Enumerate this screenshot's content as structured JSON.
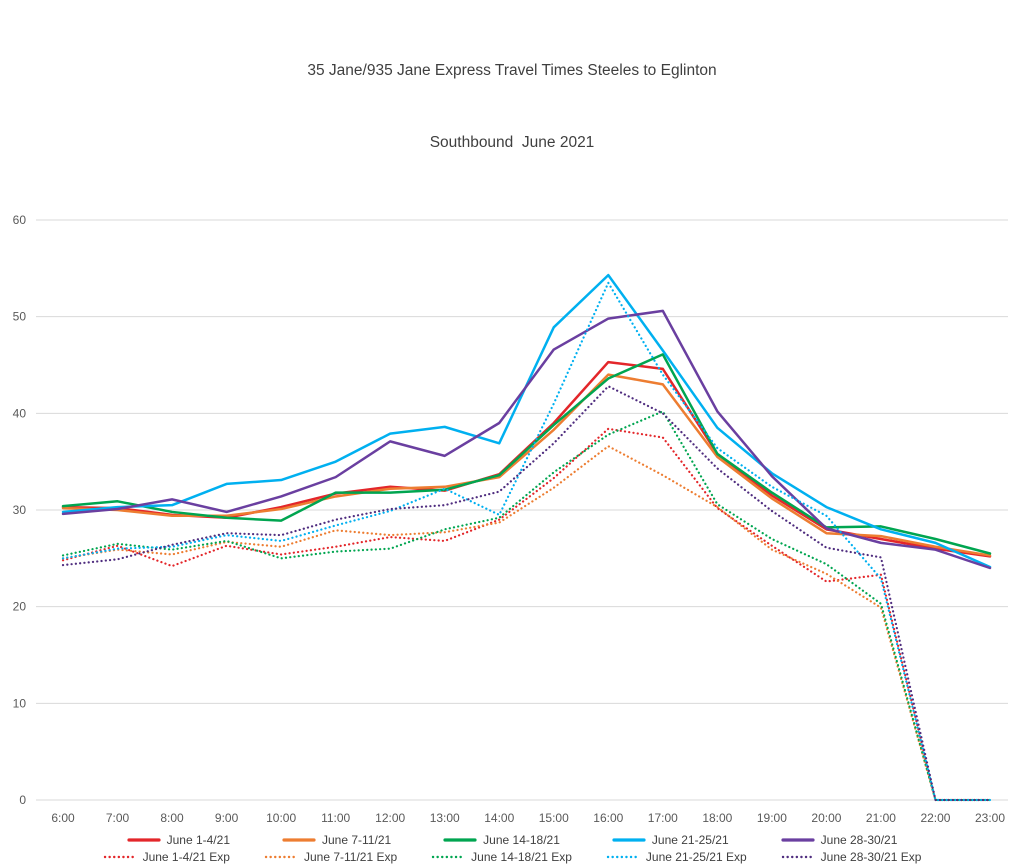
{
  "title": {
    "line1": "35 Jane/935 Jane Express Travel Times Steeles to Eglinton",
    "line2": "Southbound  June 2021"
  },
  "chart_data": {
    "type": "line",
    "title": "35 Jane/935 Jane Express Travel Times Steeles to Eglinton Southbound June 2021",
    "xlabel": "",
    "ylabel": "",
    "x": [
      "6:00",
      "7:00",
      "8:00",
      "9:00",
      "10:00",
      "11:00",
      "12:00",
      "13:00",
      "14:00",
      "15:00",
      "16:00",
      "17:00",
      "18:00",
      "19:00",
      "20:00",
      "21:00",
      "22:00",
      "23:00"
    ],
    "ylim": [
      0,
      60
    ],
    "yticks": [
      0,
      10,
      20,
      30,
      40,
      50,
      60
    ],
    "grid": true,
    "grid_color": "#d9d9d9",
    "axis_text_color": "#595959",
    "legend_position": "bottom",
    "series": [
      {
        "name": "June 1-4/21",
        "color": "#e3262a",
        "style": "solid",
        "values": [
          30.3,
          30.2,
          29.5,
          29.2,
          30.3,
          31.7,
          32.4,
          32.0,
          33.7,
          39.0,
          45.3,
          44.6,
          35.8,
          31.5,
          28.0,
          27.0,
          26.0,
          25.2
        ]
      },
      {
        "name": "June 7-11/21",
        "color": "#ed7d31",
        "style": "solid",
        "values": [
          30.2,
          30.0,
          29.4,
          29.4,
          30.1,
          31.4,
          32.2,
          32.4,
          33.4,
          38.3,
          44.0,
          43.0,
          35.5,
          31.2,
          27.6,
          27.3,
          26.2,
          25.3
        ]
      },
      {
        "name": "June 14-18/21",
        "color": "#00a550",
        "style": "solid",
        "values": [
          30.4,
          30.9,
          29.8,
          29.2,
          28.9,
          31.8,
          31.8,
          32.1,
          33.6,
          38.8,
          43.6,
          46.1,
          35.8,
          31.8,
          28.2,
          28.3,
          27.0,
          25.5
        ]
      },
      {
        "name": "June 21-25/21",
        "color": "#00b0f0",
        "style": "solid",
        "values": [
          29.8,
          30.3,
          30.5,
          32.7,
          33.1,
          35.0,
          37.9,
          38.6,
          36.9,
          48.9,
          54.3,
          46.5,
          38.5,
          33.8,
          30.3,
          28.0,
          26.6,
          24.1
        ]
      },
      {
        "name": "June 28-30/21",
        "color": "#6a3fa0",
        "style": "solid",
        "values": [
          29.6,
          30.1,
          31.1,
          29.8,
          31.4,
          33.4,
          37.1,
          35.6,
          39.0,
          46.6,
          49.8,
          50.6,
          40.2,
          33.5,
          28.1,
          26.6,
          25.9,
          24.0
        ]
      },
      {
        "name": "June 1-4/21 Exp",
        "color": "#e3262a",
        "style": "dotted",
        "values": [
          24.8,
          26.3,
          24.2,
          26.3,
          25.4,
          26.2,
          27.2,
          26.8,
          29.0,
          33.3,
          38.4,
          37.5,
          30.2,
          26.3,
          22.6,
          23.3,
          0,
          0
        ]
      },
      {
        "name": "June 7-11/21 Exp",
        "color": "#ed7d31",
        "style": "dotted",
        "values": [
          25.0,
          25.9,
          25.4,
          26.7,
          26.2,
          27.9,
          27.4,
          27.7,
          28.7,
          32.3,
          36.6,
          33.6,
          30.3,
          25.9,
          23.4,
          19.9,
          0,
          0
        ]
      },
      {
        "name": "June 14-18/21 Exp",
        "color": "#00a550",
        "style": "dotted",
        "values": [
          25.3,
          26.5,
          25.9,
          26.8,
          25.0,
          25.7,
          26.0,
          28.0,
          29.2,
          33.9,
          37.8,
          40.2,
          30.6,
          27.0,
          24.4,
          20.3,
          0,
          0
        ]
      },
      {
        "name": "June 21-25/21 Exp",
        "color": "#00b0f0",
        "style": "dotted",
        "values": [
          25.0,
          26.0,
          26.2,
          27.4,
          26.8,
          28.4,
          29.9,
          32.2,
          29.5,
          41.0,
          53.5,
          44.0,
          36.4,
          32.4,
          29.4,
          22.9,
          0,
          0
        ]
      },
      {
        "name": "June 28-30/21 Exp",
        "color": "#4f2d7f",
        "style": "dotted",
        "values": [
          24.3,
          24.9,
          26.4,
          27.6,
          27.4,
          29.0,
          30.1,
          30.5,
          31.9,
          36.9,
          42.8,
          40.0,
          34.3,
          29.9,
          26.1,
          25.1,
          0,
          0
        ]
      }
    ]
  }
}
